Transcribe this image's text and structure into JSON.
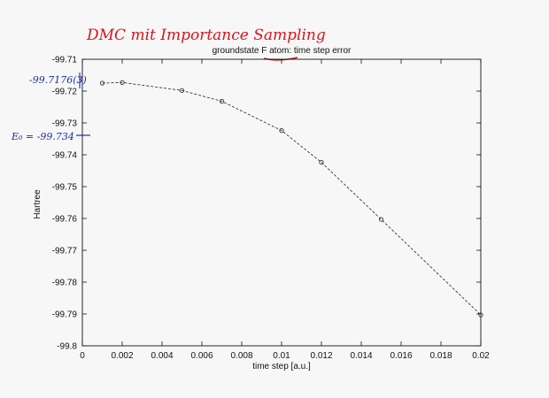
{
  "chart_data": {
    "type": "line",
    "title": "groundstate F atom: time step error",
    "xlabel": "time step [a.u.]",
    "ylabel": "Hartree",
    "xlim": [
      0,
      0.02
    ],
    "ylim": [
      -99.8,
      -99.71
    ],
    "x_ticks": [
      "0",
      "0.002",
      "0.004",
      "0.006",
      "0.008",
      "0.01",
      "0.012",
      "0.014",
      "0.016",
      "0.018",
      "0.02"
    ],
    "y_ticks": [
      "-99.71",
      "-99.72",
      "-99.73",
      "-99.74",
      "-99.75",
      "-99.76",
      "-99.77",
      "-99.78",
      "-99.79",
      "-99.8"
    ],
    "series": [
      {
        "x": [
          0.001,
          0.002,
          0.005,
          0.007,
          0.01,
          0.012,
          0.015,
          0.02
        ],
        "y": [
          -99.7175,
          -99.7173,
          -99.7198,
          -99.7232,
          -99.7324,
          -99.7424,
          -99.7603,
          -99.7903
        ],
        "line_style": "dashed",
        "marker": "circle"
      }
    ],
    "grid": false,
    "legend": "none"
  },
  "annotations": {
    "heading": "DMC mit Importance Sampling",
    "value_note": "-99.7176(3)",
    "energy_note": "E₀ = -99.734"
  },
  "colors": {
    "heading_ink": "#d8141c",
    "note_ink": "#1c2f9a",
    "plot_line": "#222222"
  }
}
